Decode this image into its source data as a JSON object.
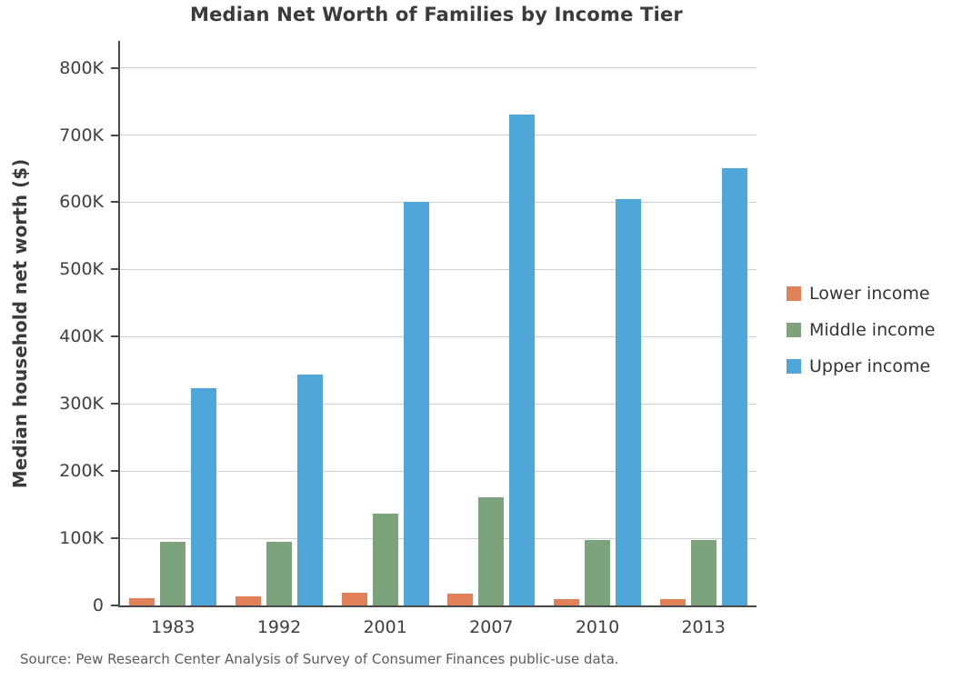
{
  "chart_data": {
    "type": "bar",
    "title": "Median Net Worth of Families by Income Tier",
    "xlabel": "",
    "ylabel": "Median household net worth ($)",
    "categories": [
      "1983",
      "1992",
      "2001",
      "2007",
      "2010",
      "2013"
    ],
    "series": [
      {
        "name": "Lower income",
        "color": "#E08159",
        "values": [
          11000,
          13000,
          19000,
          18000,
          10000,
          9000
        ]
      },
      {
        "name": "Middle income",
        "color": "#7CA37C",
        "values": [
          95000,
          95000,
          137000,
          161000,
          98000,
          98000
        ]
      },
      {
        "name": "Upper income",
        "color": "#4FA6D8",
        "values": [
          323000,
          344000,
          600000,
          730000,
          605000,
          650000
        ]
      }
    ],
    "ylim": [
      0,
      840000
    ],
    "yticks": [
      0,
      100000,
      200000,
      300000,
      400000,
      500000,
      600000,
      700000,
      800000
    ],
    "ytick_labels": [
      "0",
      "100K",
      "200K",
      "300K",
      "400K",
      "500K",
      "600K",
      "700K",
      "800K"
    ],
    "grid": true,
    "legend_position": "right"
  },
  "source": "Source: Pew Research Center Analysis of Survey of Consumer Finances public-use data."
}
